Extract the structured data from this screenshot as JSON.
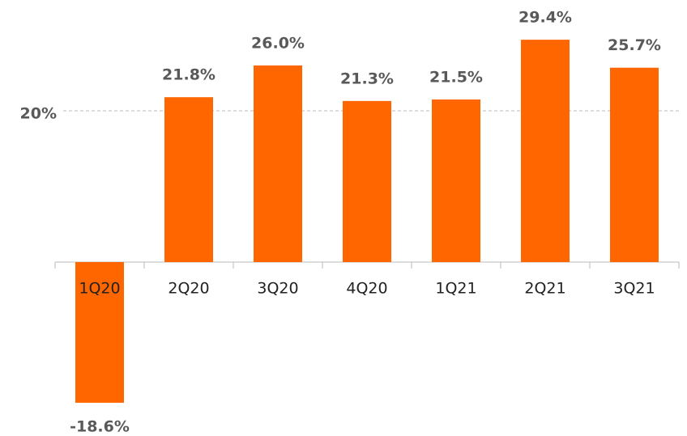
{
  "chart_data": {
    "type": "bar",
    "categories": [
      "1Q20",
      "2Q20",
      "3Q20",
      "4Q20",
      "1Q21",
      "2Q21",
      "3Q21"
    ],
    "values": [
      -18.6,
      21.8,
      26.0,
      21.3,
      21.5,
      29.4,
      25.7
    ],
    "value_labels": [
      "-18.6%",
      "21.8%",
      "26.0%",
      "21.3%",
      "21.5%",
      "29.4%",
      "25.7%"
    ],
    "color": "#ff6600",
    "ylim": [
      -20,
      30
    ],
    "yticks": [
      {
        "value": 20,
        "label": "20%"
      }
    ],
    "grid": true
  }
}
